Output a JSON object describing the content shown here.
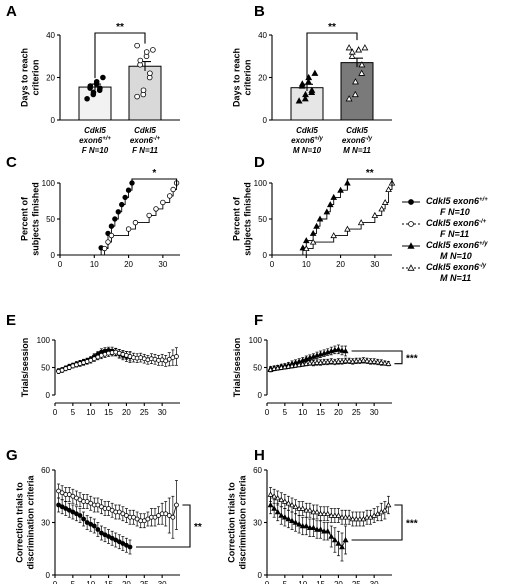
{
  "panel_labels": [
    "A",
    "B",
    "C",
    "D",
    "E",
    "F",
    "G",
    "H"
  ],
  "legend": [
    {
      "l1": "Cdkl5 exon6",
      "sup": "+/+",
      "l2": "F N=10",
      "marker": "circle",
      "fill": "#000"
    },
    {
      "l1": "Cdkl5 exon6",
      "sup": "-/+",
      "l2": "F N=11",
      "marker": "circle",
      "fill": "#fff"
    },
    {
      "l1": "Cdkl5 exon6",
      "sup": "+/y",
      "l2": "M N=10",
      "marker": "triangle",
      "fill": "#000"
    },
    {
      "l1": "Cdkl5 exon6",
      "sup": "-/y",
      "l2": "M N=11",
      "marker": "triangle",
      "fill": "#fff"
    }
  ],
  "chart_data": [
    {
      "id": "A",
      "type": "bar",
      "ylabel": "Days to reach criterion",
      "ylim": [
        0,
        40
      ],
      "yticks": [
        0,
        20,
        40
      ],
      "categories": [
        {
          "l1": "Cdkl5",
          "l2": "exon6",
          "sup": "+/+",
          "l3": "F N=10"
        },
        {
          "l1": "Cdkl5",
          "l2": "exon6",
          "sup": "-/+",
          "l3": "F N=11"
        }
      ],
      "values": [
        15.5,
        25.3
      ],
      "errors": [
        1.4,
        2.2
      ],
      "bar_colors": [
        "#f2f2f2",
        "#d9d9d9"
      ],
      "marker": "circle",
      "points": [
        [
          10,
          12,
          13,
          14,
          15,
          15,
          16,
          17,
          18,
          20
        ],
        [
          11,
          12,
          14,
          20,
          22,
          26,
          28,
          30,
          32,
          33,
          35
        ]
      ],
      "significance": "**"
    },
    {
      "id": "B",
      "type": "bar",
      "ylabel": "Days to reach criterion",
      "ylim": [
        0,
        40
      ],
      "yticks": [
        0,
        20,
        40
      ],
      "categories": [
        {
          "l1": "Cdkl5",
          "l2": "exon6",
          "sup": "+/y",
          "l3": "M N=10"
        },
        {
          "l1": "Cdkl5",
          "l2": "exon6",
          "sup": "-/y",
          "l3": "M N=11"
        }
      ],
      "values": [
        15.2,
        27.0
      ],
      "errors": [
        1.6,
        2.1
      ],
      "bar_colors": [
        "#e6e6e6",
        "#7a7a7a"
      ],
      "marker": "triangle",
      "points": [
        [
          9,
          10,
          12,
          13,
          14,
          16,
          17,
          18,
          20,
          22
        ],
        [
          10,
          12,
          18,
          22,
          26,
          30,
          32,
          33,
          33,
          34,
          34
        ]
      ],
      "significance": "**"
    },
    {
      "id": "C",
      "type": "line",
      "subtype": "step",
      "ylabel": "Percent of subjects finished",
      "xlim": [
        0,
        35
      ],
      "xticks": [
        0,
        10,
        20,
        30
      ],
      "ylim": [
        0,
        100
      ],
      "yticks": [
        0,
        50,
        100
      ],
      "series": [
        {
          "marker": "circle",
          "fill": "#000",
          "x": [
            0,
            12,
            14,
            15,
            16,
            17,
            18,
            19,
            20,
            21
          ],
          "y": [
            0,
            10,
            30,
            40,
            50,
            60,
            70,
            80,
            90,
            100
          ]
        },
        {
          "marker": "circle",
          "fill": "#fff",
          "x": [
            0,
            13,
            14,
            15,
            20,
            22,
            26,
            28,
            30,
            32,
            33,
            34
          ],
          "y": [
            0,
            9,
            18,
            27,
            36,
            45,
            55,
            64,
            73,
            82,
            91,
            100
          ]
        }
      ],
      "significance": "*"
    },
    {
      "id": "D",
      "type": "line",
      "subtype": "step",
      "ylabel": "Percent of subjects finished",
      "xlim": [
        0,
        35
      ],
      "xticks": [
        0,
        10,
        20,
        30
      ],
      "ylim": [
        0,
        100
      ],
      "yticks": [
        0,
        50,
        100
      ],
      "series": [
        {
          "marker": "triangle",
          "fill": "#000",
          "x": [
            0,
            9,
            10,
            12,
            13,
            14,
            16,
            17,
            18,
            20,
            22
          ],
          "y": [
            0,
            10,
            20,
            30,
            40,
            50,
            60,
            70,
            80,
            90,
            100
          ]
        },
        {
          "marker": "triangle",
          "fill": "#fff",
          "x": [
            0,
            10,
            12,
            18,
            22,
            26,
            30,
            32,
            33,
            34,
            35
          ],
          "y": [
            0,
            9,
            18,
            27,
            36,
            45,
            55,
            64,
            73,
            91,
            100
          ]
        }
      ],
      "significance": "**"
    },
    {
      "id": "E",
      "type": "line",
      "ylabel": "Trials/session",
      "xlim": [
        0,
        35
      ],
      "xticks": [
        0,
        5,
        10,
        15,
        20,
        25,
        30
      ],
      "ylim": [
        0,
        100
      ],
      "yticks": [
        0,
        50,
        100
      ],
      "series": [
        {
          "marker": "circle",
          "fill": "#000",
          "x": [
            1,
            2,
            3,
            4,
            5,
            6,
            7,
            8,
            9,
            10,
            11,
            12,
            13,
            14,
            15,
            16,
            17,
            18,
            19,
            20,
            21
          ],
          "y": [
            44,
            46,
            49,
            52,
            54,
            56,
            58,
            60,
            62,
            65,
            70,
            74,
            78,
            80,
            81,
            80,
            78,
            75,
            72,
            70,
            69
          ],
          "err": [
            4,
            4,
            4,
            4,
            4,
            5,
            5,
            5,
            5,
            5,
            5,
            5,
            6,
            6,
            6,
            7,
            7,
            8,
            8,
            9,
            10
          ]
        },
        {
          "marker": "circle",
          "fill": "#fff",
          "x": [
            1,
            2,
            3,
            4,
            5,
            6,
            7,
            8,
            9,
            10,
            11,
            12,
            13,
            14,
            15,
            16,
            17,
            18,
            19,
            20,
            21,
            22,
            23,
            24,
            25,
            26,
            27,
            28,
            29,
            30,
            31,
            32,
            33,
            34
          ],
          "y": [
            43,
            45,
            48,
            50,
            53,
            55,
            57,
            59,
            61,
            63,
            66,
            69,
            72,
            74,
            76,
            77,
            78,
            76,
            74,
            72,
            70,
            68,
            67,
            68,
            66,
            64,
            66,
            65,
            63,
            64,
            62,
            65,
            68,
            70
          ],
          "err": [
            4,
            4,
            4,
            4,
            4,
            4,
            5,
            5,
            5,
            5,
            5,
            5,
            6,
            6,
            6,
            6,
            6,
            7,
            7,
            7,
            8,
            8,
            8,
            8,
            8,
            8,
            9,
            9,
            9,
            10,
            10,
            12,
            14,
            16
          ]
        }
      ]
    },
    {
      "id": "F",
      "type": "line",
      "ylabel": "Trials/session",
      "xlim": [
        0,
        35
      ],
      "xticks": [
        0,
        5,
        10,
        15,
        20,
        25,
        30
      ],
      "ylim": [
        0,
        100
      ],
      "yticks": [
        0,
        50,
        100
      ],
      "series": [
        {
          "marker": "triangle",
          "fill": "#000",
          "x": [
            1,
            2,
            3,
            4,
            5,
            6,
            7,
            8,
            9,
            10,
            11,
            12,
            13,
            14,
            15,
            16,
            17,
            18,
            19,
            20,
            21,
            22
          ],
          "y": [
            48,
            49,
            50,
            52,
            53,
            55,
            57,
            59,
            61,
            63,
            66,
            68,
            70,
            72,
            74,
            76,
            78,
            80,
            82,
            83,
            81,
            80
          ],
          "err": [
            4,
            4,
            4,
            4,
            4,
            4,
            5,
            5,
            5,
            5,
            5,
            5,
            5,
            6,
            6,
            6,
            6,
            7,
            7,
            8,
            8,
            9
          ]
        },
        {
          "marker": "triangle",
          "fill": "#fff",
          "x": [
            1,
            2,
            3,
            4,
            5,
            6,
            7,
            8,
            9,
            10,
            11,
            12,
            13,
            14,
            15,
            16,
            17,
            18,
            19,
            20,
            21,
            22,
            23,
            24,
            25,
            26,
            27,
            28,
            29,
            30,
            31,
            32,
            33,
            34
          ],
          "y": [
            46,
            48,
            49,
            50,
            51,
            52,
            53,
            54,
            55,
            56,
            57,
            58,
            58,
            59,
            59,
            60,
            60,
            61,
            60,
            61,
            61,
            62,
            62,
            61,
            62,
            62,
            63,
            62,
            61,
            61,
            60,
            59,
            58,
            57
          ],
          "err": [
            4,
            4,
            4,
            4,
            4,
            4,
            4,
            4,
            4,
            4,
            4,
            4,
            5,
            5,
            5,
            5,
            5,
            5,
            5,
            5,
            5,
            5,
            5,
            5,
            5,
            5,
            5,
            5,
            5,
            5,
            5,
            5,
            4,
            4
          ]
        }
      ],
      "significance": "***"
    },
    {
      "id": "G",
      "type": "line",
      "ylabel": "Correction trials to discrimination criteria",
      "xlim": [
        0,
        35
      ],
      "xticks": [
        0,
        5,
        10,
        15,
        20,
        25,
        30
      ],
      "ylim": [
        0,
        60
      ],
      "yticks": [
        0,
        30,
        60
      ],
      "series": [
        {
          "marker": "circle",
          "fill": "#000",
          "x": [
            1,
            2,
            3,
            4,
            5,
            6,
            7,
            8,
            9,
            10,
            11,
            12,
            13,
            14,
            15,
            16,
            17,
            18,
            19,
            20,
            21
          ],
          "y": [
            40,
            39,
            38,
            37,
            36,
            35,
            34,
            32,
            30,
            29,
            28,
            26,
            24,
            23,
            22,
            21,
            20,
            19,
            18,
            17,
            16
          ],
          "err": [
            4,
            4,
            4,
            4,
            4,
            4,
            4,
            4,
            4,
            4,
            4,
            4,
            4,
            4,
            4,
            4,
            4,
            4,
            4,
            4,
            4
          ]
        },
        {
          "marker": "circle",
          "fill": "#fff",
          "x": [
            1,
            2,
            3,
            4,
            5,
            6,
            7,
            8,
            9,
            10,
            11,
            12,
            13,
            14,
            15,
            16,
            17,
            18,
            19,
            20,
            21,
            22,
            23,
            24,
            25,
            26,
            27,
            28,
            29,
            30,
            31,
            32,
            33,
            34
          ],
          "y": [
            48,
            47,
            46,
            46,
            45,
            44,
            43,
            42,
            42,
            41,
            40,
            40,
            39,
            38,
            38,
            37,
            36,
            36,
            35,
            34,
            33,
            33,
            32,
            31,
            31,
            32,
            33,
            33,
            34,
            35,
            35,
            34,
            33,
            40
          ],
          "err": [
            4,
            4,
            4,
            4,
            4,
            4,
            4,
            4,
            4,
            4,
            4,
            4,
            4,
            4,
            4,
            4,
            4,
            4,
            4,
            4,
            4,
            4,
            4,
            4,
            4,
            4,
            5,
            5,
            5,
            6,
            7,
            10,
            12,
            14
          ]
        }
      ],
      "significance": "**"
    },
    {
      "id": "H",
      "type": "line",
      "ylabel": "Correction trials to discrimination criteria",
      "xlim": [
        0,
        35
      ],
      "xticks": [
        0,
        5,
        10,
        15,
        20,
        25,
        30
      ],
      "ylim": [
        0,
        60
      ],
      "yticks": [
        0,
        30,
        60
      ],
      "series": [
        {
          "marker": "triangle",
          "fill": "#000",
          "x": [
            1,
            2,
            3,
            4,
            5,
            6,
            7,
            8,
            9,
            10,
            11,
            12,
            13,
            14,
            15,
            16,
            17,
            18,
            19,
            20,
            21,
            22
          ],
          "y": [
            40,
            38,
            36,
            34,
            33,
            32,
            31,
            30,
            29,
            28,
            28,
            27,
            27,
            26,
            26,
            25,
            25,
            22,
            20,
            18,
            16,
            20
          ],
          "err": [
            5,
            5,
            5,
            5,
            5,
            5,
            5,
            5,
            5,
            5,
            5,
            5,
            5,
            5,
            5,
            5,
            5,
            6,
            7,
            7,
            8,
            8
          ]
        },
        {
          "marker": "triangle",
          "fill": "#fff",
          "x": [
            1,
            2,
            3,
            4,
            5,
            6,
            7,
            8,
            9,
            10,
            11,
            12,
            13,
            14,
            15,
            16,
            17,
            18,
            19,
            20,
            21,
            22,
            23,
            24,
            25,
            26,
            27,
            28,
            29,
            30,
            31,
            32,
            33,
            34
          ],
          "y": [
            46,
            45,
            44,
            43,
            42,
            41,
            40,
            39,
            38,
            38,
            37,
            37,
            36,
            36,
            35,
            35,
            35,
            34,
            34,
            34,
            33,
            33,
            33,
            32,
            32,
            32,
            32,
            33,
            33,
            34,
            35,
            36,
            37,
            40
          ],
          "err": [
            4,
            4,
            4,
            4,
            4,
            4,
            4,
            4,
            4,
            4,
            4,
            4,
            4,
            4,
            4,
            4,
            4,
            4,
            4,
            4,
            4,
            4,
            4,
            4,
            4,
            4,
            4,
            4,
            4,
            4,
            4,
            5,
            5,
            5
          ]
        }
      ],
      "significance": "***"
    }
  ]
}
